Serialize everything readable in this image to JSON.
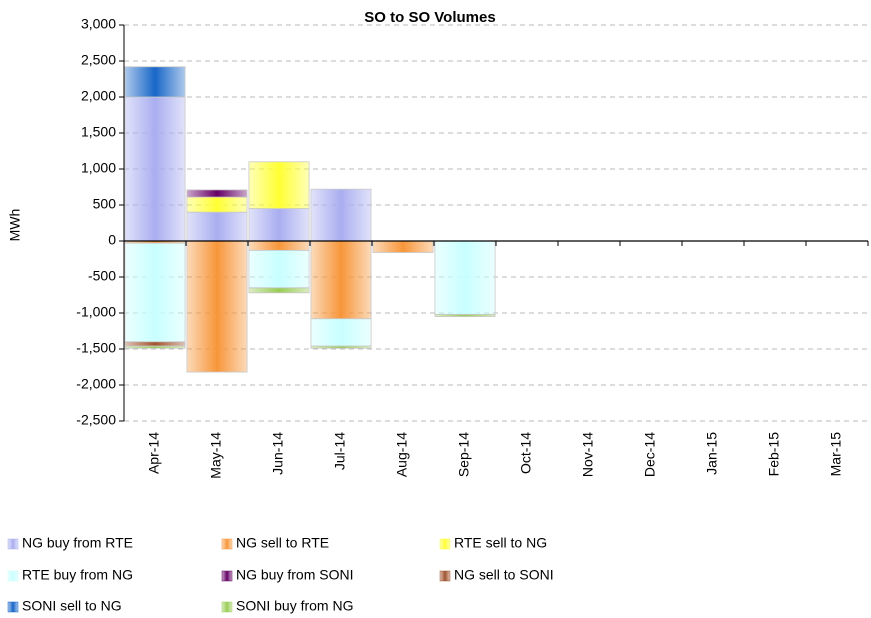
{
  "chart_data": {
    "type": "stacked_bar",
    "title": "SO to SO Volumes",
    "y_label": "MWh",
    "categories": [
      "Apr-14",
      "May-14",
      "Jun-14",
      "Jul-14",
      "Aug-14",
      "Sep-14",
      "Oct-14",
      "Nov-14",
      "Dec-14",
      "Jan-15",
      "Feb-15",
      "Mar-15"
    ],
    "series": [
      {
        "name": "NG buy from RTE",
        "color": "#a9aef0",
        "values": [
          2000,
          400,
          450,
          720,
          null,
          null,
          null,
          null,
          null,
          null,
          null,
          null
        ]
      },
      {
        "name": "NG sell to RTE",
        "color": "#f7963a",
        "values": [
          -30,
          -1820,
          -130,
          -1080,
          -160,
          null,
          null,
          null,
          null,
          null,
          null,
          null
        ]
      },
      {
        "name": "RTE sell to NG",
        "color": "#ffff33",
        "values": [
          null,
          210,
          650,
          null,
          null,
          null,
          null,
          null,
          null,
          null,
          null,
          null
        ]
      },
      {
        "name": "RTE buy from NG",
        "color": "#c8ffff",
        "values": [
          -1370,
          null,
          -520,
          -380,
          null,
          -1020,
          null,
          null,
          null,
          null,
          null,
          null
        ]
      },
      {
        "name": "NG buy from SONI",
        "color": "#660066",
        "values": [
          null,
          100,
          null,
          null,
          null,
          null,
          null,
          null,
          null,
          null,
          null,
          null
        ]
      },
      {
        "name": "NG sell to SONI",
        "color": "#a0522d",
        "values": [
          -60,
          null,
          null,
          null,
          null,
          null,
          null,
          null,
          null,
          null,
          null,
          null
        ]
      },
      {
        "name": "SONI sell to NG",
        "color": "#1766c8",
        "values": [
          420,
          null,
          null,
          null,
          null,
          null,
          null,
          null,
          null,
          null,
          null,
          null
        ]
      },
      {
        "name": "SONI buy from NG",
        "color": "#99cc55",
        "values": [
          -30,
          null,
          -70,
          -30,
          null,
          -30,
          null,
          null,
          null,
          null,
          null,
          null
        ]
      }
    ],
    "ylim": [
      -2500,
      3000
    ],
    "yticks": [
      {
        "value": 3000,
        "label": "3,000"
      },
      {
        "value": 2500,
        "label": "2,500"
      },
      {
        "value": 2000,
        "label": "2,000"
      },
      {
        "value": 1500,
        "label": "1,500"
      },
      {
        "value": 1000,
        "label": "1,000"
      },
      500,
      0,
      -500,
      {
        "value": -1000,
        "label": "-1,000"
      },
      {
        "value": -1500,
        "label": "-1,500"
      },
      {
        "value": -2000,
        "label": "-2,000"
      },
      {
        "value": -2500,
        "label": "-2,500"
      }
    ],
    "grid": true,
    "legend": "bottom"
  }
}
